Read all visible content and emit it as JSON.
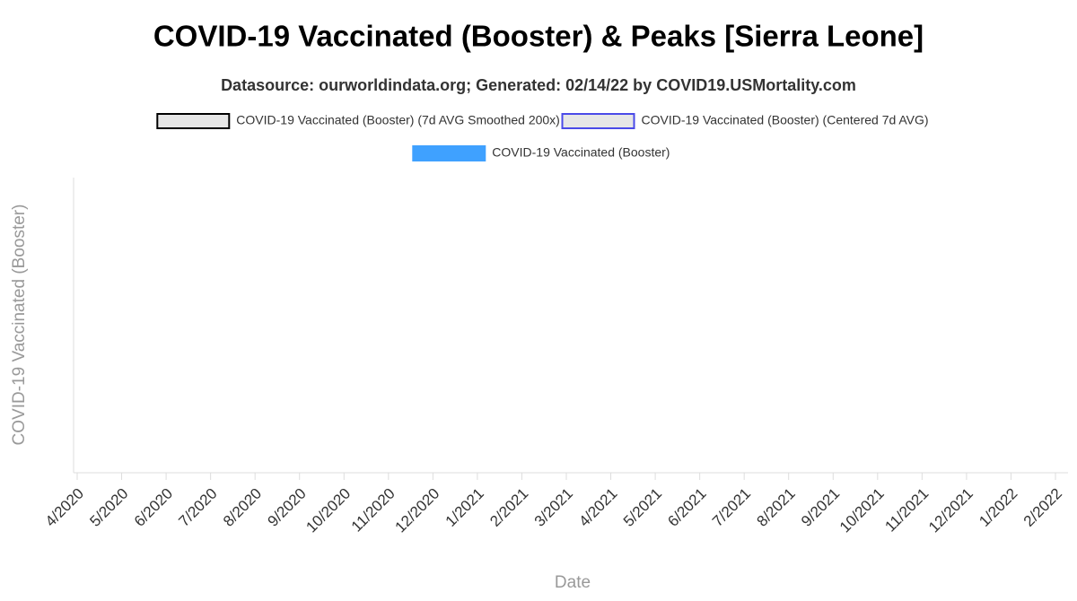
{
  "chart_data": {
    "type": "line",
    "title": "COVID-19 Vaccinated (Booster) & Peaks [Sierra Leone]",
    "subtitle": "Datasource: ourworldindata.org; Generated: 02/14/22 by COVID19.USMortality.com",
    "x_label": "Date",
    "y_label": "COVID-19 Vaccinated (Booster)",
    "x": [],
    "xticks": [
      "4/2020",
      "5/2020",
      "6/2020",
      "7/2020",
      "8/2020",
      "9/2020",
      "10/2020",
      "11/2020",
      "12/2020",
      "1/2021",
      "2/2021",
      "3/2021",
      "4/2021",
      "5/2021",
      "6/2021",
      "7/2021",
      "8/2021",
      "9/2021",
      "10/2021",
      "11/2021",
      "12/2021",
      "1/2022",
      "2/2022"
    ],
    "series": [
      {
        "name": "COVID-19 Vaccinated (Booster) (7d AVG Smoothed 200x)",
        "color": "#e6e6e6",
        "border_color": "#000000",
        "values": []
      },
      {
        "name": "COVID-19 Vaccinated (Booster) (Centered 7d AVG)",
        "color": "#e6e6e6",
        "border_color": "#4a4ae8",
        "values": []
      },
      {
        "name": "COVID-19 Vaccinated (Booster)",
        "color": "#3fa1ff",
        "border_color": "#3fa1ff",
        "values": []
      }
    ]
  }
}
